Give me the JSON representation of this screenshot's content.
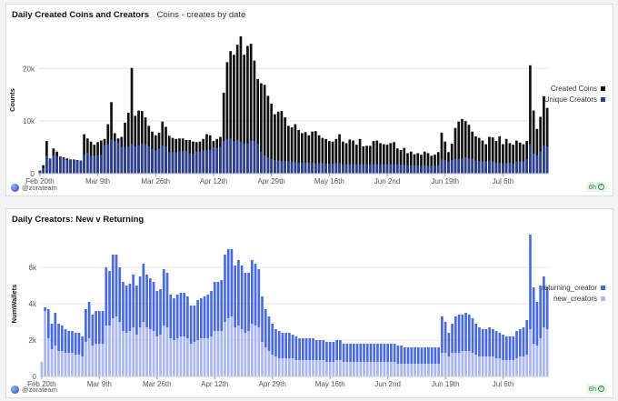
{
  "panel1": {
    "title": "Daily Created Coins and Creators",
    "subtitle": "Coins - creates by date",
    "author": "@zorateam",
    "refresh": "6h",
    "legend": [
      "Created Coins",
      "Unique Creators"
    ]
  },
  "panel2": {
    "title": "Daily Creators: New v Returning",
    "author": "@zorateam",
    "refresh": "6h",
    "legend": [
      "returning_creator",
      "new_creators"
    ]
  },
  "colors": {
    "black_bar": "#111111",
    "blue_dark": "#2c3f8f",
    "blue_mid": "#4a6be0",
    "blue_light": "#a9b8f3"
  },
  "chart_data": [
    {
      "type": "bar",
      "title": "Daily Created Coins and Creators",
      "ylabel": "Counts",
      "xlabel": "",
      "ylim": [
        0,
        28000
      ],
      "yticks": [
        "0",
        "10k",
        "20k"
      ],
      "ytick_values": [
        0,
        10000,
        20000
      ],
      "xticks": [
        "Feb 20th",
        "Mar 9th",
        "Mar 26th",
        "Apr 12th",
        "Apr 29th",
        "May 16th",
        "Jun 2nd",
        "Jun 19th",
        "Jul 6th"
      ],
      "xtick_index": [
        0,
        17,
        34,
        51,
        68,
        85,
        102,
        119,
        136
      ],
      "overlay": true,
      "series": [
        {
          "name": "Created Coins",
          "color": "#111111",
          "values": [
            600,
            1600,
            6200,
            2800,
            4800,
            4200,
            3300,
            3100,
            2900,
            2700,
            2700,
            2600,
            2500,
            7500,
            6700,
            6100,
            5500,
            6000,
            6300,
            6600,
            9400,
            13600,
            7700,
            6700,
            7000,
            9700,
            11600,
            20100,
            11000,
            12000,
            11900,
            10700,
            9100,
            8000,
            7300,
            7800,
            9900,
            8900,
            7200,
            6800,
            6600,
            6700,
            6700,
            6400,
            6400,
            6100,
            6000,
            6100,
            6600,
            7500,
            7300,
            6200,
            6600,
            7000,
            15400,
            21200,
            23300,
            22600,
            24500,
            26100,
            22600,
            24300,
            24700,
            21500,
            18000,
            17200,
            16900,
            14800,
            13300,
            11300,
            11800,
            11900,
            10700,
            9100,
            8800,
            9400,
            8300,
            7700,
            7900,
            7300,
            8000,
            8100,
            7300,
            6800,
            6600,
            6200,
            6100,
            6600,
            7500,
            6100,
            5800,
            6500,
            6300,
            5500,
            6600,
            5200,
            5300,
            5300,
            6200,
            6300,
            5800,
            5600,
            5500,
            5800,
            6000,
            4800,
            4500,
            4900,
            3900,
            4200,
            3700,
            3900,
            3600,
            4200,
            3900,
            3400,
            3600,
            4100,
            7800,
            6100,
            4100,
            5700,
            8700,
            9900,
            10400,
            10000,
            9300,
            8000,
            7100,
            6800,
            6300,
            5600,
            7000,
            6900,
            6200,
            7100,
            5600,
            6600,
            5800,
            5500,
            6300,
            5900,
            5600,
            6200,
            20600,
            12000,
            8500,
            10800,
            14700,
            12500
          ]
        },
        {
          "name": "Unique Creators",
          "color": "#2c3f8f",
          "values": [
            500,
            1100,
            3400,
            2900,
            3500,
            3300,
            3300,
            2900,
            2600,
            2600,
            2600,
            2500,
            2500,
            3600,
            4000,
            3400,
            3400,
            3500,
            3600,
            5500,
            5600,
            6500,
            6200,
            5900,
            5100,
            5100,
            5200,
            5700,
            5200,
            5400,
            5700,
            5500,
            5200,
            4700,
            4400,
            4800,
            5400,
            5200,
            4100,
            4100,
            4100,
            4300,
            4300,
            4300,
            3900,
            3800,
            4200,
            4200,
            4400,
            4500,
            4500,
            5000,
            4900,
            5100,
            6200,
            6600,
            6700,
            6200,
            6400,
            6100,
            5800,
            5700,
            6300,
            6200,
            5700,
            4200,
            3500,
            3100,
            2800,
            2600,
            2500,
            2400,
            2400,
            2400,
            2300,
            2200,
            2100,
            2100,
            2100,
            2100,
            2100,
            2000,
            2000,
            2000,
            1900,
            1900,
            1900,
            2000,
            2000,
            1800,
            1800,
            1800,
            1800,
            1800,
            1800,
            1800,
            1800,
            1800,
            1800,
            1800,
            1800,
            1800,
            1800,
            1800,
            1800,
            1800,
            1700,
            1700,
            1600,
            1600,
            1600,
            1600,
            1500,
            1600,
            1500,
            1500,
            1500,
            1600,
            2700,
            2600,
            2300,
            2600,
            2800,
            2800,
            2900,
            3100,
            2900,
            2800,
            2500,
            2400,
            2300,
            2400,
            2500,
            2300,
            2100,
            2100,
            2000,
            2000,
            2100,
            1900,
            2300,
            2300,
            2400,
            2800,
            5600,
            3800,
            3500,
            4300,
            5400,
            5200
          ]
        }
      ]
    },
    {
      "type": "bar",
      "stacked": true,
      "title": "Daily Creators: New v Returning",
      "ylabel": "NumWallets",
      "xlabel": "",
      "ylim": [
        0,
        8000
      ],
      "yticks": [
        "0",
        "2k",
        "4k",
        "6k"
      ],
      "ytick_values": [
        0,
        2000,
        4000,
        6000
      ],
      "xticks": [
        "Feb 20th",
        "Mar 9th",
        "Mar 26th",
        "Apr 12th",
        "Apr 29th",
        "May 16th",
        "Jun 2nd",
        "Jun 19th",
        "Jul 6th"
      ],
      "xtick_index": [
        0,
        17,
        34,
        51,
        68,
        85,
        102,
        119,
        136
      ],
      "series": [
        {
          "name": "new_creators",
          "color": "#a9b8f3",
          "values": [
            800,
            3600,
            2100,
            1500,
            1700,
            1400,
            1400,
            1300,
            1300,
            1300,
            1200,
            1200,
            1100,
            1900,
            2100,
            1700,
            1800,
            1800,
            1800,
            2800,
            2800,
            3200,
            3300,
            3000,
            2500,
            2400,
            2500,
            2700,
            2300,
            2700,
            3000,
            2700,
            2600,
            2500,
            2200,
            2300,
            2800,
            2700,
            2100,
            2000,
            2100,
            2200,
            2200,
            2100,
            1800,
            1900,
            2000,
            2100,
            2100,
            2100,
            2200,
            2500,
            2500,
            2500,
            3000,
            3200,
            3300,
            2700,
            2800,
            2600,
            2400,
            2500,
            2900,
            2800,
            2700,
            1900,
            1600,
            1400,
            1200,
            1100,
            1000,
            1000,
            1000,
            1000,
            1000,
            900,
            900,
            900,
            900,
            900,
            900,
            900,
            900,
            900,
            800,
            800,
            800,
            900,
            900,
            800,
            800,
            800,
            800,
            800,
            800,
            800,
            800,
            800,
            800,
            800,
            800,
            800,
            800,
            800,
            800,
            700,
            700,
            700,
            700,
            700,
            700,
            700,
            700,
            700,
            700,
            700,
            700,
            700,
            1300,
            1300,
            1100,
            1300,
            1300,
            1300,
            1400,
            1400,
            1400,
            1300,
            1200,
            1100,
            1100,
            1100,
            1100,
            1100,
            1000,
            1000,
            900,
            900,
            900,
            900,
            1000,
            1100,
            1100,
            1200,
            2600,
            1800,
            1700,
            2100,
            2700,
            2600
          ]
        },
        {
          "name": "returning_creator",
          "color": "#4a6be0",
          "values": [
            0,
            200,
            1600,
            1400,
            1800,
            1500,
            1400,
            1300,
            1200,
            1200,
            1200,
            1200,
            1100,
            1800,
            2000,
            1700,
            1800,
            1800,
            1800,
            3200,
            3000,
            3500,
            3400,
            3000,
            2700,
            2600,
            2600,
            2900,
            2700,
            2800,
            3200,
            2900,
            2800,
            2700,
            2500,
            2500,
            3100,
            3000,
            2400,
            2300,
            2400,
            2400,
            2400,
            2300,
            2100,
            2000,
            2200,
            2200,
            2300,
            2400,
            2500,
            2700,
            2700,
            2800,
            3700,
            3800,
            3700,
            3400,
            3600,
            3500,
            3300,
            3200,
            3500,
            3400,
            3200,
            2500,
            2100,
            1900,
            1700,
            1500,
            1500,
            1400,
            1400,
            1400,
            1300,
            1300,
            1200,
            1200,
            1200,
            1200,
            1200,
            1100,
            1100,
            1100,
            1100,
            1100,
            1100,
            1100,
            1100,
            1000,
            1000,
            1000,
            1000,
            1000,
            1000,
            1000,
            1000,
            1000,
            1000,
            1000,
            1000,
            1000,
            1000,
            1000,
            1000,
            1000,
            1000,
            900,
            900,
            900,
            900,
            900,
            900,
            900,
            900,
            900,
            900,
            900,
            2000,
            1700,
            1300,
            1600,
            2000,
            2100,
            2000,
            2100,
            2000,
            1900,
            1700,
            1600,
            1500,
            1500,
            1600,
            1500,
            1500,
            1400,
            1400,
            1300,
            1300,
            1300,
            1500,
            1500,
            1600,
            1900,
            5200,
            3100,
            2400,
            2900,
            2800,
            2300
          ]
        }
      ]
    }
  ]
}
